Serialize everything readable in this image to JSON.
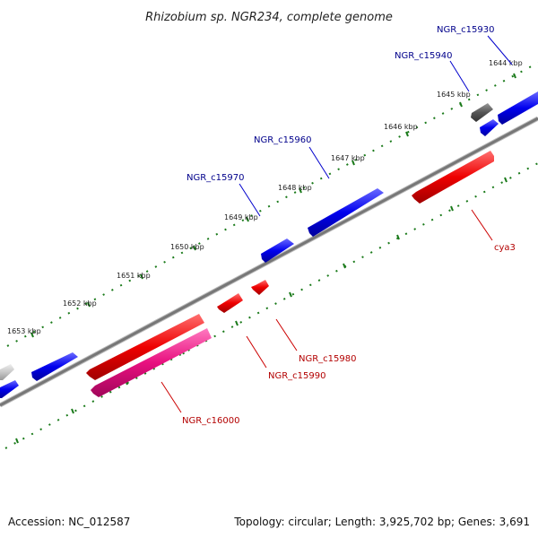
{
  "title": "Rhizobium sp. NGR234, complete genome",
  "footer": {
    "accession": "Accession: NC_012587",
    "stats": "Topology: circular; Length: 3,925,702 bp; Genes: 3,691"
  },
  "colors": {
    "forward_gene": "#0000ee",
    "reverse_gene": "#ee0000",
    "pink_gene": "#e8107f",
    "dark_gene": "#555555",
    "light_gene": "#c8c8c8",
    "axis": "#777777",
    "ticks": "#1a7a1a",
    "forward_label": "#00008b",
    "reverse_label": "#b30000"
  },
  "scale_labels": [
    "1644 kbp",
    "1645 kbp",
    "1646 kbp",
    "1647 kbp",
    "1648 kbp",
    "1649 kbp",
    "1650 kbp",
    "1651 kbp",
    "1652 kbp",
    "1653 kbp"
  ],
  "gene_labels": {
    "forward": [
      "NGR_c15930",
      "NGR_c15940",
      "NGR_c15960",
      "NGR_c15970"
    ],
    "reverse": [
      "cya3",
      "NGR_c15980",
      "NGR_c15990",
      "NGR_c16000"
    ]
  }
}
